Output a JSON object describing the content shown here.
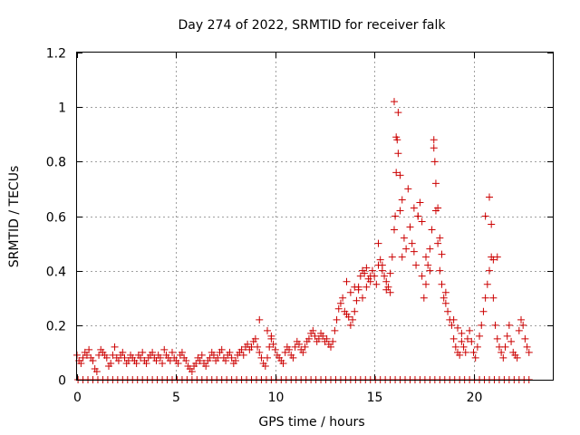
{
  "chart_data": {
    "type": "scatter",
    "title": "Day 274 of 2022, SRMTID for receiver falk",
    "xlabel": "GPS time / hours",
    "ylabel": "SRMTID / TECUs",
    "xlim": [
      0,
      24
    ],
    "ylim": [
      0,
      1.2
    ],
    "xticks": [
      0,
      5,
      10,
      15,
      20
    ],
    "xtick_labels": [
      "0",
      "5",
      "10",
      "15",
      "20"
    ],
    "yticks": [
      0,
      0.2,
      0.4,
      0.6,
      0.8,
      1,
      1.2
    ],
    "ytick_labels": [
      "0",
      "0.2",
      "0.4",
      "0.6",
      "0.8",
      "1",
      "1.2"
    ],
    "grid": true,
    "marker": "+",
    "color": "#cc0000",
    "series": [
      {
        "name": "SRMTID",
        "x": [
          0.0,
          0.1,
          0.2,
          0.3,
          0.4,
          0.5,
          0.6,
          0.7,
          0.8,
          0.9,
          1.0,
          1.1,
          1.2,
          1.3,
          1.4,
          1.5,
          1.6,
          1.7,
          1.8,
          1.9,
          2.0,
          2.1,
          2.2,
          2.3,
          2.4,
          2.5,
          2.6,
          2.7,
          2.8,
          2.9,
          3.0,
          3.1,
          3.2,
          3.3,
          3.4,
          3.5,
          3.6,
          3.7,
          3.8,
          3.9,
          4.0,
          4.1,
          4.2,
          4.3,
          4.4,
          4.5,
          4.6,
          4.7,
          4.8,
          4.9,
          5.0,
          5.1,
          5.2,
          5.3,
          5.4,
          5.5,
          5.6,
          5.7,
          5.8,
          5.9,
          6.0,
          6.1,
          6.2,
          6.3,
          6.4,
          6.5,
          6.6,
          6.7,
          6.8,
          6.9,
          7.0,
          7.1,
          7.2,
          7.3,
          7.4,
          7.5,
          7.6,
          7.7,
          7.8,
          7.9,
          8.0,
          8.1,
          8.2,
          8.3,
          8.4,
          8.5,
          8.6,
          8.7,
          8.8,
          8.9,
          9.0,
          9.1,
          9.2,
          9.3,
          9.4,
          9.5,
          9.6,
          9.7,
          9.8,
          9.9,
          10.0,
          10.1,
          10.2,
          10.3,
          10.4,
          10.5,
          10.6,
          10.7,
          10.8,
          10.9,
          11.0,
          11.1,
          11.2,
          11.3,
          11.4,
          11.5,
          11.6,
          11.7,
          11.8,
          11.9,
          12.0,
          12.1,
          12.2,
          12.3,
          12.4,
          12.5,
          12.6,
          12.7,
          12.8,
          12.9,
          13.0,
          13.1,
          13.2,
          13.3,
          13.4,
          13.5,
          13.6,
          13.7,
          13.8,
          13.9,
          14.0,
          14.1,
          14.2,
          14.3,
          14.4,
          14.5,
          14.6,
          14.7,
          14.8,
          14.9,
          15.0,
          15.1,
          15.2,
          15.3,
          15.4,
          15.5,
          15.6,
          15.7,
          15.8,
          15.9,
          16.0,
          16.05,
          16.1,
          16.15,
          16.2,
          16.3,
          16.4,
          16.5,
          16.6,
          16.7,
          16.8,
          16.9,
          17.0,
          17.1,
          17.2,
          17.3,
          17.4,
          17.5,
          17.6,
          17.7,
          17.8,
          17.9,
          18.0,
          18.05,
          18.1,
          18.2,
          18.3,
          18.4,
          18.5,
          18.6,
          18.7,
          18.8,
          18.9,
          19.0,
          19.1,
          19.2,
          19.3,
          19.4,
          19.5,
          19.6,
          19.7,
          19.8,
          19.9,
          20.0,
          20.1,
          20.2,
          20.3,
          20.4,
          20.5,
          20.6,
          20.7,
          20.8,
          20.9,
          21.0,
          21.1,
          21.2,
          21.3,
          21.4,
          21.5,
          21.6,
          21.7,
          21.8,
          21.9,
          22.0,
          22.1,
          22.2,
          22.3,
          22.4,
          22.5,
          22.6,
          22.7,
          22.8,
          16.0,
          16.1,
          16.2,
          16.3,
          16.4,
          17.0,
          17.2,
          17.4,
          17.6,
          17.8,
          18.0,
          18.1,
          18.2,
          18.3,
          18.4,
          18.6,
          19.0,
          19.2,
          19.4,
          20.6,
          20.8,
          20.9,
          21.0,
          21.2,
          15.2,
          15.4,
          15.6,
          15.8,
          14.2,
          14.4,
          14.6,
          14.8,
          13.6,
          13.8,
          14.0,
          9.2,
          9.6,
          9.8,
          0.05,
          0.3,
          0.55,
          0.8,
          1.05,
          1.3,
          1.55,
          1.8,
          2.05,
          2.3,
          2.55,
          2.8,
          3.05,
          3.3,
          3.55,
          3.8,
          4.05,
          4.3,
          4.55,
          4.8,
          5.05,
          5.3,
          5.55,
          5.8,
          6.05,
          6.3,
          6.55,
          6.8,
          7.05,
          7.3,
          7.55,
          7.8,
          8.05,
          8.3,
          8.55,
          8.8,
          9.05,
          9.3,
          9.55,
          9.8,
          10.05,
          10.3,
          10.55,
          10.8,
          11.05,
          11.3,
          11.55,
          11.8,
          12.05,
          12.3,
          12.55,
          12.8,
          13.05,
          13.3,
          13.55,
          13.8,
          14.05,
          14.3,
          14.55,
          14.8,
          15.05,
          15.3,
          15.55,
          15.8,
          16.05,
          16.3,
          16.55,
          16.8,
          17.05,
          17.3,
          17.55,
          17.8,
          18.05,
          18.3,
          18.55,
          18.8,
          19.05,
          19.3,
          19.55,
          19.8,
          20.05,
          20.3,
          20.55,
          20.8,
          21.05,
          21.3,
          21.55,
          21.8,
          22.05,
          22.3,
          22.55,
          22.8
        ],
        "y": [
          0.09,
          0.07,
          0.06,
          0.08,
          0.1,
          0.09,
          0.11,
          0.08,
          0.07,
          0.04,
          0.03,
          0.09,
          0.11,
          0.1,
          0.09,
          0.08,
          0.05,
          0.06,
          0.09,
          0.12,
          0.08,
          0.07,
          0.09,
          0.1,
          0.08,
          0.06,
          0.07,
          0.09,
          0.08,
          0.07,
          0.06,
          0.09,
          0.08,
          0.1,
          0.07,
          0.06,
          0.08,
          0.09,
          0.1,
          0.08,
          0.07,
          0.09,
          0.08,
          0.06,
          0.11,
          0.09,
          0.08,
          0.07,
          0.1,
          0.08,
          0.07,
          0.06,
          0.09,
          0.1,
          0.08,
          0.07,
          0.05,
          0.04,
          0.03,
          0.05,
          0.06,
          0.08,
          0.07,
          0.09,
          0.06,
          0.05,
          0.07,
          0.08,
          0.1,
          0.09,
          0.07,
          0.08,
          0.1,
          0.11,
          0.08,
          0.07,
          0.09,
          0.1,
          0.08,
          0.06,
          0.07,
          0.09,
          0.1,
          0.11,
          0.09,
          0.12,
          0.13,
          0.11,
          0.12,
          0.14,
          0.15,
          0.12,
          0.1,
          0.08,
          0.06,
          0.05,
          0.08,
          0.12,
          0.15,
          0.13,
          0.11,
          0.09,
          0.08,
          0.07,
          0.06,
          0.1,
          0.12,
          0.11,
          0.09,
          0.08,
          0.12,
          0.14,
          0.13,
          0.11,
          0.1,
          0.12,
          0.14,
          0.15,
          0.17,
          0.18,
          0.16,
          0.14,
          0.15,
          0.17,
          0.16,
          0.14,
          0.15,
          0.13,
          0.12,
          0.14,
          0.18,
          0.22,
          0.26,
          0.28,
          0.3,
          0.25,
          0.24,
          0.23,
          0.2,
          0.22,
          0.25,
          0.29,
          0.34,
          0.38,
          0.4,
          0.39,
          0.41,
          0.37,
          0.36,
          0.4,
          0.38,
          0.35,
          0.42,
          0.44,
          0.4,
          0.38,
          0.36,
          0.34,
          0.32,
          0.45,
          0.55,
          0.6,
          0.76,
          0.88,
          0.98,
          0.62,
          0.45,
          0.52,
          0.48,
          0.7,
          0.56,
          0.5,
          0.47,
          0.42,
          0.6,
          0.65,
          0.38,
          0.3,
          0.35,
          0.42,
          0.48,
          0.55,
          0.85,
          0.8,
          0.62,
          0.5,
          0.4,
          0.35,
          0.3,
          0.28,
          0.25,
          0.22,
          0.2,
          0.15,
          0.12,
          0.1,
          0.09,
          0.14,
          0.12,
          0.1,
          0.15,
          0.18,
          0.14,
          0.1,
          0.08,
          0.12,
          0.16,
          0.2,
          0.25,
          0.3,
          0.35,
          0.4,
          0.45,
          0.3,
          0.2,
          0.15,
          0.12,
          0.1,
          0.08,
          0.12,
          0.16,
          0.2,
          0.14,
          0.1,
          0.09,
          0.08,
          0.18,
          0.22,
          0.2,
          0.15,
          0.12,
          0.1,
          1.02,
          0.89,
          0.83,
          0.75,
          0.66,
          0.63,
          0.6,
          0.58,
          0.45,
          0.4,
          0.88,
          0.72,
          0.63,
          0.52,
          0.46,
          0.32,
          0.22,
          0.19,
          0.17,
          0.6,
          0.67,
          0.57,
          0.44,
          0.45,
          0.5,
          0.42,
          0.33,
          0.39,
          0.33,
          0.3,
          0.34,
          0.38,
          0.36,
          0.32,
          0.34,
          0.22,
          0.18,
          0.16,
          0,
          0,
          0,
          0,
          0,
          0,
          0,
          0,
          0,
          0,
          0,
          0,
          0,
          0,
          0,
          0,
          0,
          0,
          0,
          0,
          0,
          0,
          0,
          0,
          0,
          0,
          0,
          0,
          0,
          0,
          0,
          0,
          0,
          0,
          0,
          0,
          0,
          0,
          0,
          0,
          0,
          0,
          0,
          0,
          0,
          0,
          0,
          0,
          0,
          0,
          0,
          0,
          0,
          0,
          0,
          0,
          0,
          0,
          0,
          0,
          0,
          0,
          0,
          0,
          0,
          0,
          0,
          0,
          0,
          0,
          0,
          0,
          0,
          0,
          0,
          0,
          0,
          0,
          0,
          0,
          0,
          0,
          0,
          0,
          0,
          0,
          0,
          0,
          0,
          0,
          0,
          0
        ]
      }
    ]
  }
}
